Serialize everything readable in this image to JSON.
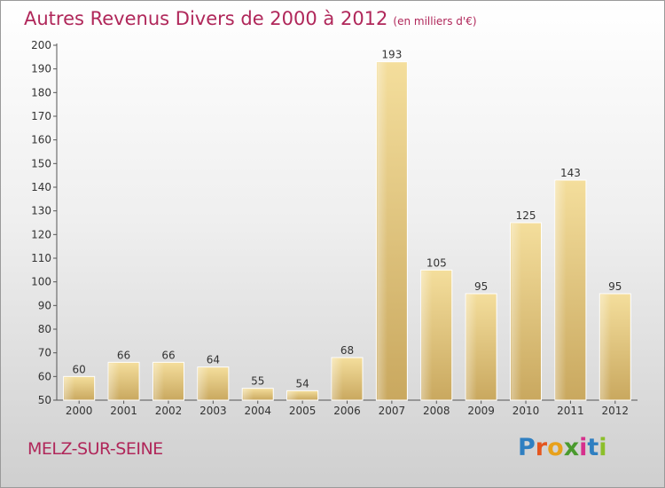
{
  "chart_data": {
    "type": "bar",
    "title": "Autres Revenus Divers de 2000 à 2012",
    "subtitle": "(en milliers d'€)",
    "categories": [
      "2000",
      "2001",
      "2002",
      "2003",
      "2004",
      "2005",
      "2006",
      "2007",
      "2008",
      "2009",
      "2010",
      "2011",
      "2012"
    ],
    "values": [
      60,
      66,
      66,
      64,
      55,
      54,
      68,
      193,
      105,
      95,
      125,
      143,
      95
    ],
    "ylim": [
      50,
      200
    ],
    "yticks": [
      50,
      60,
      70,
      80,
      90,
      100,
      110,
      120,
      130,
      140,
      150,
      160,
      170,
      180,
      190,
      200
    ],
    "grid": false,
    "bar_color": "#e9cf88"
  },
  "footer": {
    "commune": "MELZ-SUR-SEINE"
  },
  "brand": {
    "letters": [
      "P",
      "r",
      "o",
      "x",
      "i",
      "t",
      "i"
    ],
    "colors": [
      "#2f7fc1",
      "#e4561f",
      "#e8a11b",
      "#4a9a2e",
      "#d6308c",
      "#2f7fc1",
      "#8cbf2a"
    ]
  }
}
